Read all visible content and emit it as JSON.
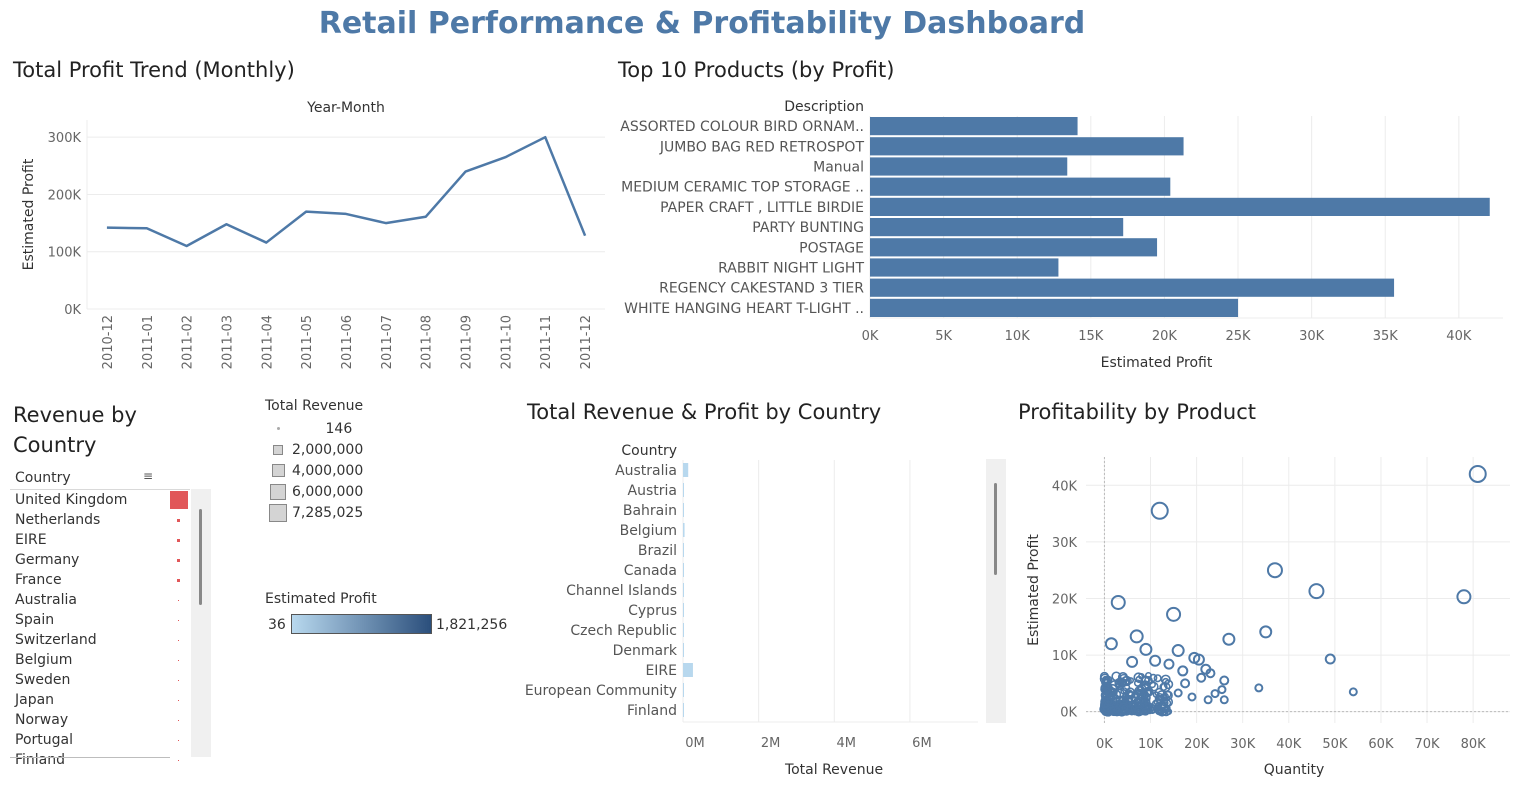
{
  "dashboard_title": "Retail Performance & Profitability Dashboard",
  "colors": {
    "primary": "#4e79a7",
    "highlight": "#e15759",
    "legend_low": "#b8d8ee",
    "legend_high": "#2b4f7c"
  },
  "sections": {
    "profit_trend": "Total Profit Trend (Monthly)",
    "top_products": "Top 10 Products (by Profit)",
    "revenue_country_title": "Revenue by Country",
    "rev_profit_country": "Total Revenue & Profit by Country",
    "profitability_product": "Profitability by Product"
  },
  "size_legend": {
    "title": "Total Revenue",
    "entries": [
      "146",
      "2,000,000",
      "4,000,000",
      "6,000,000",
      "7,285,025"
    ]
  },
  "color_legend": {
    "title": "Estimated Profit",
    "min": "36",
    "max": "1,821,256"
  },
  "country_table": {
    "header": "Country",
    "rows": [
      {
        "name": "United Kingdom",
        "mark": "bar"
      },
      {
        "name": "Netherlands",
        "mark": "dot"
      },
      {
        "name": "EIRE",
        "mark": "dot"
      },
      {
        "name": "Germany",
        "mark": "dot"
      },
      {
        "name": "France",
        "mark": "dot"
      },
      {
        "name": "Australia",
        "mark": "tiny"
      },
      {
        "name": "Spain",
        "mark": "tiny"
      },
      {
        "name": "Switzerland",
        "mark": "tiny"
      },
      {
        "name": "Belgium",
        "mark": "tiny"
      },
      {
        "name": "Sweden",
        "mark": "tiny"
      },
      {
        "name": "Japan",
        "mark": "tiny"
      },
      {
        "name": "Norway",
        "mark": "tiny"
      },
      {
        "name": "Portugal",
        "mark": "tiny"
      },
      {
        "name": "Finland",
        "mark": "tiny"
      }
    ]
  },
  "chart_data": [
    {
      "type": "line",
      "title": "Total Profit Trend (Monthly)",
      "top_label": "Year-Month",
      "ylabel": "Estimated Profit",
      "x": [
        "2010-12",
        "2011-01",
        "2011-02",
        "2011-03",
        "2011-04",
        "2011-05",
        "2011-06",
        "2011-07",
        "2011-08",
        "2011-09",
        "2011-10",
        "2011-11",
        "2011-12"
      ],
      "y": [
        142000,
        141000,
        110000,
        148000,
        116000,
        170000,
        166000,
        150000,
        161000,
        240000,
        265000,
        300000,
        128000
      ],
      "yticks": [
        "0K",
        "100K",
        "200K",
        "300K"
      ],
      "ytick_values": [
        0,
        100000,
        200000,
        300000
      ]
    },
    {
      "type": "bar",
      "orientation": "horizontal",
      "title": "Top 10 Products (by Profit)",
      "category_header": "Description",
      "xlabel": "Estimated Profit",
      "categories": [
        "ASSORTED COLOUR BIRD ORNAM..",
        "JUMBO BAG RED RETROSPOT",
        "Manual",
        "MEDIUM CERAMIC TOP STORAGE ..",
        "PAPER CRAFT , LITTLE BIRDIE",
        "PARTY BUNTING",
        "POSTAGE",
        "RABBIT NIGHT LIGHT",
        "REGENCY CAKESTAND 3 TIER",
        "WHITE HANGING HEART T-LIGHT .."
      ],
      "values": [
        14100,
        21300,
        13400,
        20400,
        42100,
        17200,
        19500,
        12800,
        35600,
        25000
      ],
      "xticks": [
        "0K",
        "5K",
        "10K",
        "15K",
        "20K",
        "25K",
        "30K",
        "35K",
        "40K"
      ],
      "xlim": [
        0,
        43000
      ]
    },
    {
      "type": "bar",
      "orientation": "horizontal",
      "title": "Total Revenue & Profit by Country",
      "category_header": "Country",
      "xlabel": "Total Revenue",
      "categories": [
        "Australia",
        "Austria",
        "Bahrain",
        "Belgium",
        "Brazil",
        "Canada",
        "Channel Islands",
        "Cyprus",
        "Czech Republic",
        "Denmark",
        "EIRE",
        "European Community",
        "Finland"
      ],
      "values": [
        138000,
        10000,
        500,
        41000,
        1100,
        3700,
        20000,
        13600,
        700,
        18700,
        263000,
        1300,
        22000
      ],
      "xticks": [
        "0M",
        "2M",
        "4M",
        "6M"
      ],
      "xlim": [
        0,
        7800000
      ]
    },
    {
      "type": "scatter",
      "title": "Profitability by Product",
      "xlabel": "Quantity",
      "ylabel": "Estimated Profit",
      "xticks": [
        "0K",
        "10K",
        "20K",
        "30K",
        "40K",
        "50K",
        "60K",
        "70K",
        "80K"
      ],
      "yticks": [
        "0K",
        "10K",
        "20K",
        "30K",
        "40K"
      ],
      "points": [
        {
          "x": 81000,
          "y": 42000,
          "s": 8
        },
        {
          "x": 12000,
          "y": 35500,
          "s": 8
        },
        {
          "x": 37000,
          "y": 25000,
          "s": 7
        },
        {
          "x": 46000,
          "y": 21300,
          "s": 7
        },
        {
          "x": 78000,
          "y": 20300,
          "s": 6.5
        },
        {
          "x": 3000,
          "y": 19300,
          "s": 6.5
        },
        {
          "x": 15000,
          "y": 17200,
          "s": 6.5
        },
        {
          "x": 35000,
          "y": 14100,
          "s": 5.5
        },
        {
          "x": 7000,
          "y": 13300,
          "s": 6
        },
        {
          "x": 27000,
          "y": 12800,
          "s": 5.5
        },
        {
          "x": 1500,
          "y": 12000,
          "s": 5.5
        },
        {
          "x": 9000,
          "y": 11000,
          "s": 5.5
        },
        {
          "x": 16000,
          "y": 10800,
          "s": 5.5
        },
        {
          "x": 19500,
          "y": 9500,
          "s": 5
        },
        {
          "x": 20500,
          "y": 9200,
          "s": 5
        },
        {
          "x": 49000,
          "y": 9300,
          "s": 4.5
        },
        {
          "x": 11000,
          "y": 9000,
          "s": 5
        },
        {
          "x": 6000,
          "y": 8800,
          "s": 5
        },
        {
          "x": 14000,
          "y": 8400,
          "s": 4.5
        },
        {
          "x": 22000,
          "y": 7500,
          "s": 4.5
        },
        {
          "x": 17000,
          "y": 7200,
          "s": 4.5
        },
        {
          "x": 23000,
          "y": 6800,
          "s": 4
        },
        {
          "x": 21000,
          "y": 6000,
          "s": 4
        },
        {
          "x": 26000,
          "y": 5500,
          "s": 4
        },
        {
          "x": 17500,
          "y": 5000,
          "s": 4
        },
        {
          "x": 33500,
          "y": 4200,
          "s": 3.5
        },
        {
          "x": 25500,
          "y": 3900,
          "s": 3.5
        },
        {
          "x": 24000,
          "y": 3200,
          "s": 3.5
        },
        {
          "x": 22500,
          "y": 2100,
          "s": 3.5
        },
        {
          "x": 26000,
          "y": 2100,
          "s": 3.5
        },
        {
          "x": 54000,
          "y": 3500,
          "s": 3.5
        },
        {
          "x": 19000,
          "y": 2600,
          "s": 3.5
        },
        {
          "x": 16000,
          "y": 3300,
          "s": 3.5
        }
      ]
    }
  ]
}
